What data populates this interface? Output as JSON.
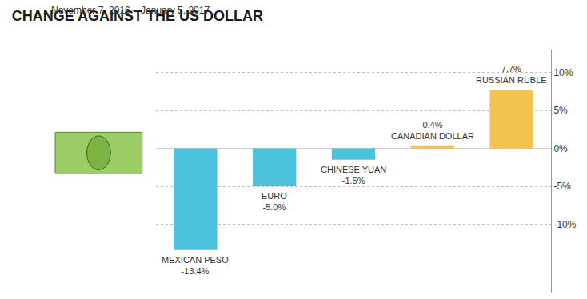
{
  "chart_data": {
    "type": "bar",
    "title": "CHANGE AGAINST THE US DOLLAR",
    "subtitle": "November 7, 2016 – January 5, 2017",
    "categories": [
      "MEXICAN PESO",
      "EURO",
      "CHINESE YUAN",
      "CANADIAN DOLLAR",
      "RUSSIAN RUBLE"
    ],
    "values": [
      -13.4,
      -5.0,
      -1.5,
      0.4,
      7.7
    ],
    "value_labels": [
      "-13.4%",
      "-5.0%",
      "-1.5%",
      "0.4%",
      "7.7%"
    ],
    "colors": [
      "#4cc3dd",
      "#4cc3dd",
      "#4cc3dd",
      "#f3c24f",
      "#f3c24f"
    ],
    "ylim": [
      -19,
      13
    ],
    "yticks": [
      {
        "value": 10,
        "label": "10%"
      },
      {
        "value": 5,
        "label": "5%"
      },
      {
        "value": 0,
        "label": "0%"
      },
      {
        "value": -5,
        "label": "-5%"
      },
      {
        "value": -10,
        "label": "-10%"
      }
    ],
    "grid": true,
    "data_labels": true,
    "tick_labels": "y"
  }
}
